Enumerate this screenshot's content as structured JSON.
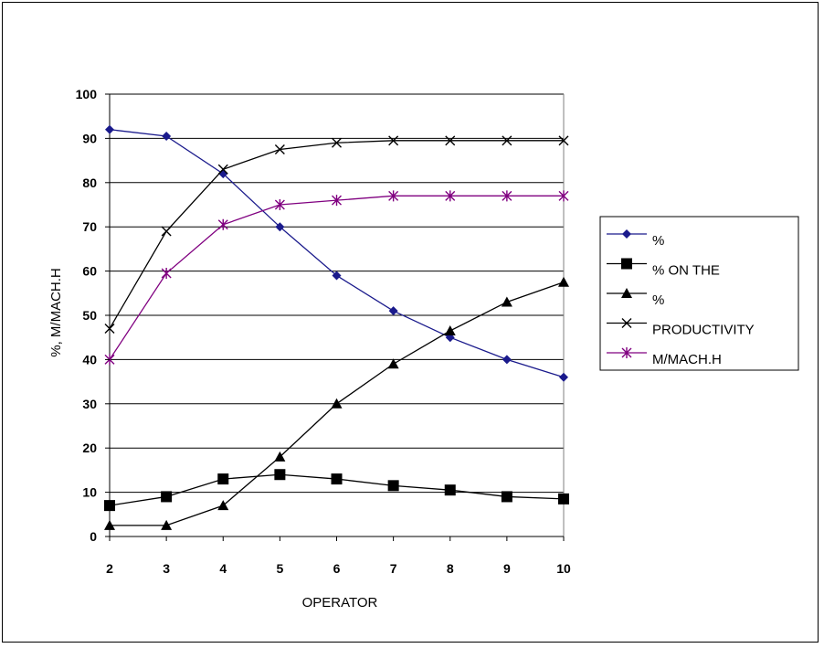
{
  "chart_data": {
    "type": "line",
    "xlabel": "OPERATOR",
    "ylabel": "%, M/MACH.H",
    "x": [
      2,
      3,
      4,
      5,
      6,
      7,
      8,
      9,
      10
    ],
    "ylim": [
      0,
      100
    ],
    "yticks": [
      0,
      10,
      20,
      30,
      40,
      50,
      60,
      70,
      80,
      90,
      100
    ],
    "grid": "horizontal",
    "legend_position": "right",
    "series": [
      {
        "name": "%",
        "marker": "diamond",
        "color": "#1a1a8c",
        "values": [
          92,
          90.5,
          82,
          70,
          59,
          51,
          45,
          40,
          36
        ]
      },
      {
        "name": "% ON THE",
        "marker": "square",
        "color": "#000000",
        "values": [
          7,
          9,
          13,
          14,
          13,
          11.5,
          10.5,
          9,
          8.5
        ]
      },
      {
        "name": "%",
        "marker": "triangle",
        "color": "#000000",
        "values": [
          2.5,
          2.5,
          7,
          18,
          30,
          39,
          46.5,
          53,
          57.5
        ]
      },
      {
        "name": "PRODUCTIVITY",
        "marker": "x",
        "color": "#000000",
        "values": [
          47,
          69,
          83,
          87.5,
          89,
          89.5,
          89.5,
          89.5,
          89.5
        ]
      },
      {
        "name": "M/MACH.H",
        "marker": "asterisk",
        "color": "#800080",
        "values": [
          40,
          59.5,
          70.5,
          75,
          76,
          77,
          77,
          77,
          77
        ]
      }
    ]
  }
}
